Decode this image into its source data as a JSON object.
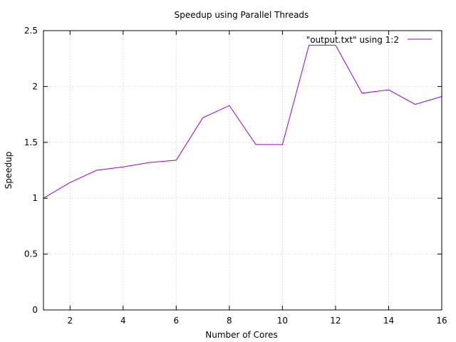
{
  "chart_data": {
    "type": "line",
    "title": "Speedup using Parallel Threads",
    "xlabel": "Number of Cores",
    "ylabel": "Speedup",
    "xlim": [
      1,
      16
    ],
    "ylim": [
      0,
      2.5
    ],
    "x_ticks": [
      2,
      4,
      6,
      8,
      10,
      12,
      14,
      16
    ],
    "y_ticks": [
      0,
      0.5,
      1,
      1.5,
      2,
      2.5
    ],
    "grid": true,
    "legend_position": "top-right",
    "series": [
      {
        "name": "\"output.txt\" using 1:2",
        "color": "#9400d3",
        "x": [
          1,
          2,
          3,
          4,
          5,
          6,
          7,
          8,
          9,
          10,
          11,
          12,
          13,
          14,
          15,
          16
        ],
        "y": [
          1.0,
          1.14,
          1.25,
          1.28,
          1.32,
          1.34,
          1.72,
          1.83,
          1.48,
          1.48,
          2.37,
          2.37,
          1.94,
          1.97,
          1.84,
          1.91
        ]
      }
    ]
  }
}
